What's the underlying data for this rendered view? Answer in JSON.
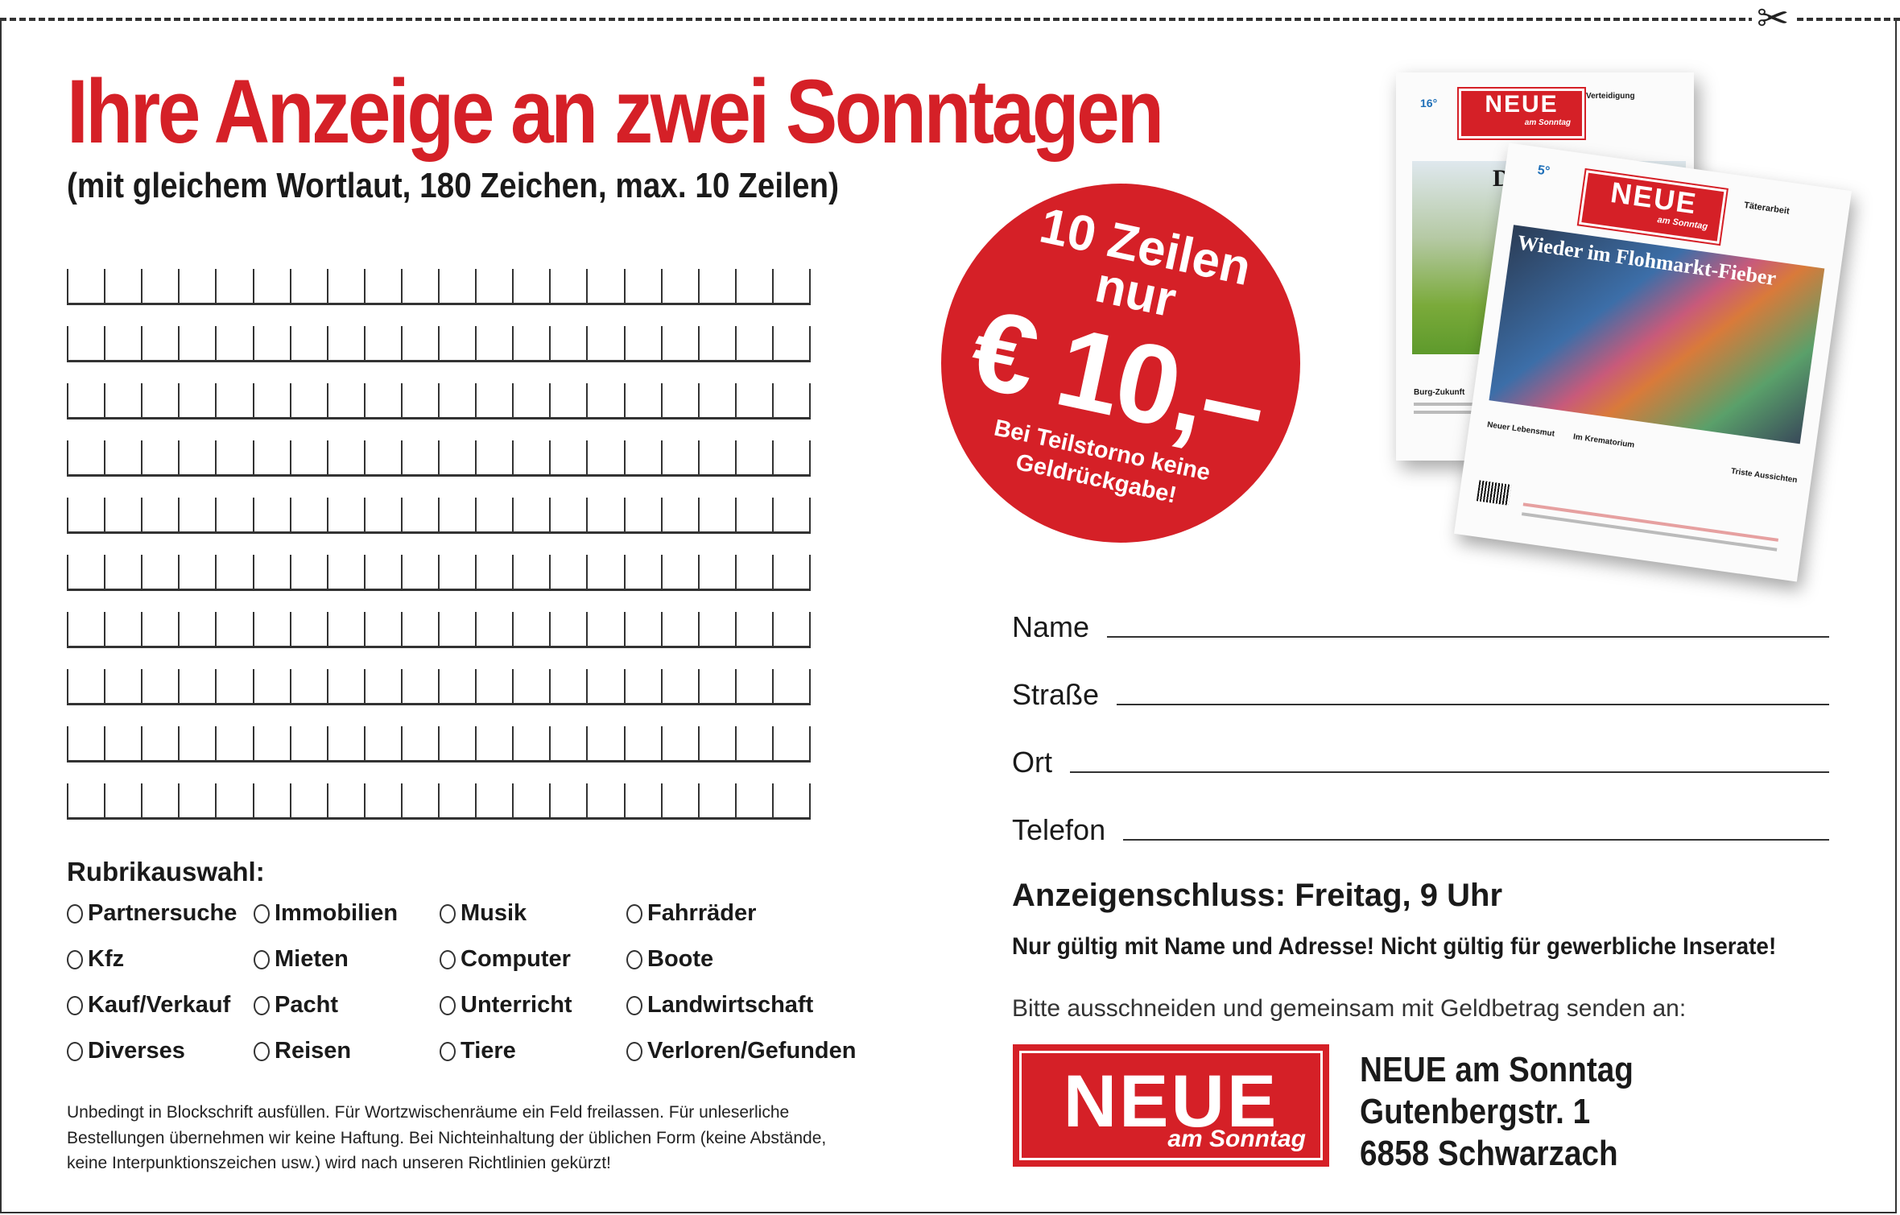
{
  "header": {
    "title": "Ihre Anzeige an zwei Sonntagen",
    "subtitle": "(mit gleichem Wortlaut, 180 Zeichen, max. 10 Zeilen)",
    "scissors_icon": "scissors-icon"
  },
  "colors": {
    "brand_red": "#d52027",
    "text": "#1a1a1a"
  },
  "offer": {
    "line1": "10 Zeilen",
    "line2": "nur",
    "price": "€ 10,–",
    "note1": "Bei Teilstorno keine",
    "note2": "Geldrückgabe!"
  },
  "newspapers": {
    "back": {
      "masthead": "NEUE",
      "sub": "am Sonntag",
      "temp": "16°",
      "headline": "Die M",
      "teaser": "Verteidigung",
      "story": "Burg-Zukunft"
    },
    "front": {
      "masthead": "NEUE",
      "sub": "am Sonntag",
      "temp": "5°",
      "headline": "Wieder im Flohmarkt-Fieber",
      "teaser": "Täterarbeit",
      "story1": "Neuer Lebensmut",
      "story2": "Im Krematorium",
      "story3": "Triste Aussichten"
    }
  },
  "rubrik": {
    "label": "Rubrikauswahl:",
    "options": [
      [
        "Partnersuche",
        "Immobilien",
        "Musik",
        "Fahrräder"
      ],
      [
        "Kfz",
        "Mieten",
        "Computer",
        "Boote"
      ],
      [
        "Kauf/Verkauf",
        "Pacht",
        "Unterricht",
        "Landwirtschaft"
      ],
      [
        "Diverses",
        "Reisen",
        "Tiere",
        "Verloren/Gefunden"
      ]
    ]
  },
  "note": "Unbedingt in Blockschrift ausfüllen. Für Wortzwischenräume ein Feld freilassen. Für unleserliche Bestellungen übernehmen wir keine Haftung. Bei Nichteinhaltung der üblichen Form (keine Abstände, keine Interpunktionszeichen usw.) wird nach unseren Richtlinien gekürzt!",
  "form": {
    "fields": [
      {
        "label": "Name",
        "value": ""
      },
      {
        "label": "Straße",
        "value": ""
      },
      {
        "label": "Ort",
        "value": ""
      },
      {
        "label": "Telefon",
        "value": ""
      }
    ]
  },
  "deadline": "Anzeigenschluss: Freitag, 9 Uhr",
  "validity": "Nur gültig mit Name und Adresse! Nicht gültig für gewerbliche Inserate!",
  "send_instruction": "Bitte ausschneiden und gemeinsam mit Geldbetrag senden an:",
  "logo": {
    "name": "NEUE",
    "sub": "am Sonntag"
  },
  "address": {
    "line1": "NEUE am Sonntag",
    "line2": "Gutenbergstr. 1",
    "line3": "6858 Schwarzach"
  }
}
